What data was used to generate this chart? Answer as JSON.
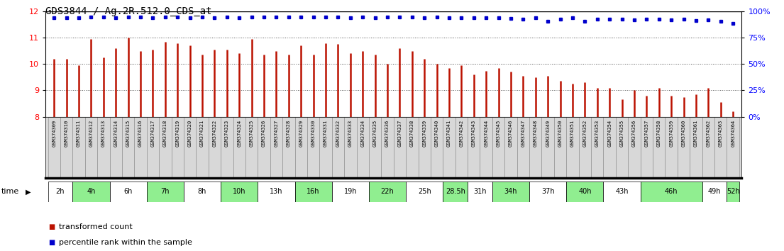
{
  "title": "GDS3844 / Ag.2R.512.0_CDS_at",
  "samples": [
    "GSM374309",
    "GSM374310",
    "GSM374311",
    "GSM374312",
    "GSM374313",
    "GSM374314",
    "GSM374315",
    "GSM374316",
    "GSM374317",
    "GSM374318",
    "GSM374319",
    "GSM374320",
    "GSM374321",
    "GSM374322",
    "GSM374323",
    "GSM374324",
    "GSM374325",
    "GSM374326",
    "GSM374327",
    "GSM374328",
    "GSM374329",
    "GSM374330",
    "GSM374331",
    "GSM374332",
    "GSM374333",
    "GSM374334",
    "GSM374335",
    "GSM374336",
    "GSM374337",
    "GSM374338",
    "GSM374339",
    "GSM374340",
    "GSM374341",
    "GSM374342",
    "GSM374343",
    "GSM374344",
    "GSM374345",
    "GSM374346",
    "GSM374347",
    "GSM374348",
    "GSM374349",
    "GSM374350",
    "GSM374351",
    "GSM374352",
    "GSM374353",
    "GSM374354",
    "GSM374355",
    "GSM374356",
    "GSM374357",
    "GSM374358",
    "GSM374359",
    "GSM374360",
    "GSM374361",
    "GSM374362",
    "GSM374363",
    "GSM374364"
  ],
  "bar_values": [
    10.2,
    10.2,
    9.95,
    10.95,
    10.25,
    10.6,
    11.0,
    10.5,
    10.55,
    10.85,
    10.8,
    10.7,
    10.35,
    10.55,
    10.55,
    10.4,
    10.95,
    10.35,
    10.5,
    10.35,
    10.7,
    10.35,
    10.8,
    10.75,
    10.4,
    10.5,
    10.35,
    10.0,
    10.6,
    10.5,
    10.2,
    10.0,
    9.85,
    9.95,
    9.6,
    9.75,
    9.85,
    9.7,
    9.55,
    9.5,
    9.55,
    9.35,
    9.25,
    9.3,
    9.1,
    9.1,
    8.65,
    9.0,
    8.8,
    9.1,
    8.8,
    8.75,
    8.85,
    9.1,
    8.55,
    8.2
  ],
  "percentile_values": [
    11.76,
    11.75,
    11.76,
    11.78,
    11.78,
    11.75,
    11.78,
    11.77,
    11.75,
    11.78,
    11.78,
    11.75,
    11.77,
    11.76,
    11.78,
    11.76,
    11.77,
    11.78,
    11.77,
    11.78,
    11.77,
    11.78,
    11.78,
    11.78,
    11.76,
    11.78,
    11.76,
    11.78,
    11.77,
    11.78,
    11.76,
    11.78,
    11.75,
    11.76,
    11.76,
    11.75,
    11.75,
    11.73,
    11.71,
    11.75,
    11.63,
    11.71,
    11.75,
    11.63,
    11.71,
    11.69,
    11.71,
    11.67,
    11.71,
    11.71,
    11.67,
    11.69,
    11.65,
    11.67,
    11.63,
    11.55
  ],
  "time_groups": [
    {
      "label": "2h",
      "start": 0,
      "end": 2,
      "color": "#ffffff"
    },
    {
      "label": "4h",
      "start": 2,
      "end": 5,
      "color": "#90EE90"
    },
    {
      "label": "6h",
      "start": 5,
      "end": 8,
      "color": "#ffffff"
    },
    {
      "label": "7h",
      "start": 8,
      "end": 11,
      "color": "#90EE90"
    },
    {
      "label": "8h",
      "start": 11,
      "end": 14,
      "color": "#ffffff"
    },
    {
      "label": "10h",
      "start": 14,
      "end": 17,
      "color": "#90EE90"
    },
    {
      "label": "13h",
      "start": 17,
      "end": 20,
      "color": "#ffffff"
    },
    {
      "label": "16h",
      "start": 20,
      "end": 23,
      "color": "#90EE90"
    },
    {
      "label": "19h",
      "start": 23,
      "end": 26,
      "color": "#ffffff"
    },
    {
      "label": "22h",
      "start": 26,
      "end": 29,
      "color": "#90EE90"
    },
    {
      "label": "25h",
      "start": 29,
      "end": 32,
      "color": "#ffffff"
    },
    {
      "label": "28.5h",
      "start": 32,
      "end": 34,
      "color": "#90EE90"
    },
    {
      "label": "31h",
      "start": 34,
      "end": 36,
      "color": "#ffffff"
    },
    {
      "label": "34h",
      "start": 36,
      "end": 39,
      "color": "#90EE90"
    },
    {
      "label": "37h",
      "start": 39,
      "end": 42,
      "color": "#ffffff"
    },
    {
      "label": "40h",
      "start": 42,
      "end": 45,
      "color": "#90EE90"
    },
    {
      "label": "43h",
      "start": 45,
      "end": 48,
      "color": "#ffffff"
    },
    {
      "label": "46h",
      "start": 48,
      "end": 53,
      "color": "#90EE90"
    },
    {
      "label": "49h",
      "start": 53,
      "end": 55,
      "color": "#ffffff"
    },
    {
      "label": "52h",
      "start": 55,
      "end": 56,
      "color": "#90EE90"
    }
  ],
  "ylim": [
    8,
    12
  ],
  "yticks_left": [
    8,
    9,
    10,
    11,
    12
  ],
  "yticks_right": [
    0,
    25,
    50,
    75,
    100
  ],
  "bar_color": "#bb1100",
  "dot_color": "#0000cc",
  "bg_color": "#ffffff",
  "cell_bg": "#d8d8d8",
  "title_fontsize": 10,
  "tick_fontsize": 8,
  "sample_fontsize": 5,
  "time_fontsize": 7,
  "legend_fontsize": 8
}
